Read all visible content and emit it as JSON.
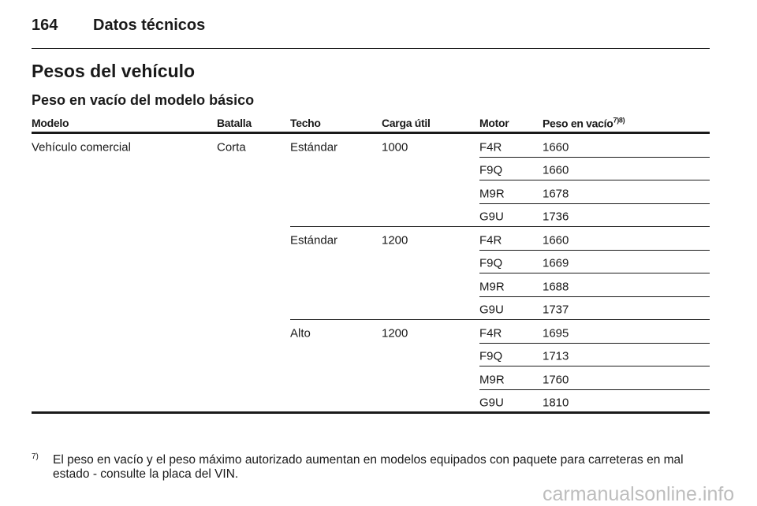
{
  "header": {
    "page_number": 164,
    "title": "Datos técnicos"
  },
  "section_title": "Pesos del vehículo",
  "subsection_title": "Peso en vacío del modelo básico",
  "table": {
    "columns": [
      "Modelo",
      "Batalla",
      "Techo",
      "Carga útil",
      "Motor",
      "Peso en vacío"
    ],
    "last_column_superscript": "7)8)",
    "model": "Vehículo comercial",
    "wheelbase": "Corta",
    "groups": [
      {
        "roof": "Estándar",
        "payload": 1000,
        "engines": [
          {
            "motor": "F4R",
            "weight": 1660
          },
          {
            "motor": "F9Q",
            "weight": 1660
          },
          {
            "motor": "M9R",
            "weight": 1678
          },
          {
            "motor": "G9U",
            "weight": 1736
          }
        ]
      },
      {
        "roof": "Estándar",
        "payload": 1200,
        "engines": [
          {
            "motor": "F4R",
            "weight": 1660
          },
          {
            "motor": "F9Q",
            "weight": 1669
          },
          {
            "motor": "M9R",
            "weight": 1688
          },
          {
            "motor": "G9U",
            "weight": 1737
          }
        ]
      },
      {
        "roof": "Alto",
        "payload": 1200,
        "engines": [
          {
            "motor": "F4R",
            "weight": 1695
          },
          {
            "motor": "F9Q",
            "weight": 1713
          },
          {
            "motor": "M9R",
            "weight": 1760
          },
          {
            "motor": "G9U",
            "weight": 1810
          }
        ]
      }
    ]
  },
  "footnote": {
    "marker": "7)",
    "lines": [
      "El peso en vacío y el peso máximo autorizado aumentan en modelos equipados con paquete para carreteras en mal",
      "estado - consulte la placa del VIN."
    ]
  },
  "watermark": "carmanualsonline.info"
}
